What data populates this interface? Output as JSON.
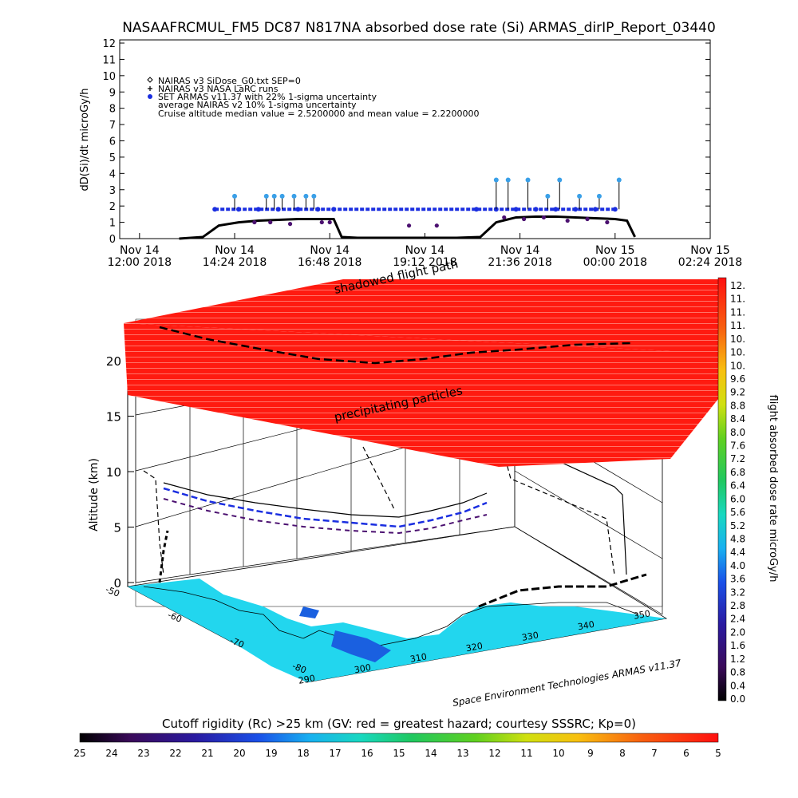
{
  "title": "NASAAFRCMUL_FM5 DC87 N817NA absorbed dose rate (Si) ARMAS_dirIP_Report_03440",
  "top_chart": {
    "ylabel": "dD(Si)/dt microGy/h",
    "y_ticks": [
      "0",
      "1",
      "2",
      "3",
      "4",
      "5",
      "6",
      "7",
      "8",
      "9",
      "10",
      "11",
      "12"
    ],
    "x_ticks": [
      {
        "line1": "Nov 14",
        "line2": "12:00 2018",
        "hours": 12.0
      },
      {
        "line1": "Nov 14",
        "line2": "14:24 2018",
        "hours": 14.4
      },
      {
        "line1": "Nov 14",
        "line2": "16:48 2018",
        "hours": 16.8
      },
      {
        "line1": "Nov 14",
        "line2": "19:12 2018",
        "hours": 19.2
      },
      {
        "line1": "Nov 14",
        "line2": "21:36 2018",
        "hours": 21.6
      },
      {
        "line1": "Nov 15",
        "line2": "00:00 2018",
        "hours": 24.0
      },
      {
        "line1": "Nov 15",
        "line2": "02:24 2018",
        "hours": 26.4
      }
    ],
    "legend": [
      {
        "symbol": "diamond",
        "text": "NAIRAS v3 SiDose_G0.txt SEP=0"
      },
      {
        "symbol": "plus",
        "text": "NAIRAS v3 NASA LaRC runs"
      },
      {
        "symbol": "dot",
        "text": "SET ARMAS v11.37 with 22% 1-sigma uncertainty"
      },
      {
        "symbol": "none",
        "text": "average NAIRAS v2 10% 1-sigma uncertainty"
      },
      {
        "symbol": "none",
        "text": "Cruise altitude median value = 2.5200000 and mean value = 2.2200000"
      }
    ],
    "overlay_label": "shadowed flight path"
  },
  "chart_data": {
    "type": "line",
    "x_unit": "hours since Nov 14 2018 00:00",
    "xlim": [
      11.5,
      26.4
    ],
    "ylim": [
      0,
      12
    ],
    "grid": false,
    "legend_position": "top-left",
    "series": [
      {
        "name": "NAIRAS v3 SiDose_G0.txt SEP=0",
        "color": "#000000",
        "x": [
          13.0,
          13.6,
          14.0,
          14.5,
          15.0,
          15.5,
          16.0,
          16.5,
          16.9,
          17.1,
          17.5,
          18.0,
          18.5,
          19.0,
          19.5,
          20.0,
          20.6,
          21.0,
          21.5,
          22.0,
          22.5,
          23.0,
          23.5,
          24.0,
          24.3,
          24.5
        ],
        "y": [
          0.0,
          0.1,
          0.8,
          1.0,
          1.1,
          1.15,
          1.2,
          1.2,
          1.2,
          0.1,
          0.05,
          0.05,
          0.05,
          0.05,
          0.05,
          0.05,
          0.1,
          1.0,
          1.3,
          1.35,
          1.35,
          1.3,
          1.25,
          1.2,
          1.1,
          0.1
        ]
      },
      {
        "name": "SET ARMAS v11.37 with 22% 1-sigma uncertainty",
        "color": "#1a2ee0",
        "x": [
          13.9,
          14.5,
          15.0,
          15.5,
          16.0,
          16.5,
          16.9,
          20.5,
          21.0,
          21.5,
          22.0,
          22.5,
          23.0,
          23.5,
          24.0
        ],
        "y": [
          1.8,
          1.8,
          1.8,
          1.8,
          1.8,
          1.8,
          1.8,
          1.8,
          1.8,
          1.8,
          1.8,
          1.8,
          1.8,
          1.8,
          1.8
        ]
      },
      {
        "name": "SET ARMAS v11.37 upper points",
        "color": "#3aa0e8",
        "x": [
          14.4,
          15.2,
          15.4,
          15.6,
          15.9,
          16.2,
          16.4,
          21.0,
          21.3,
          21.8,
          22.3,
          22.6,
          23.1,
          23.6,
          24.1
        ],
        "y": [
          2.6,
          2.6,
          2.6,
          2.6,
          2.6,
          2.6,
          2.6,
          3.6,
          3.6,
          3.6,
          2.6,
          3.6,
          2.6,
          2.6,
          3.6
        ]
      }
    ]
  },
  "three_d": {
    "zlabel": "Altitude (km)",
    "z_ticks": [
      "0",
      "5",
      "10",
      "15",
      "20"
    ],
    "x_ticks": [
      "290",
      "300",
      "310",
      "320",
      "330",
      "340",
      "350"
    ],
    "y_ticks": [
      "-50",
      "-60",
      "-70",
      "-80"
    ],
    "precip_label": "precipitating particles",
    "credit": "Space Environment Technologies ARMAS v11.37"
  },
  "right_colorbar": {
    "title": "flight absorbed dose rate microGy/h",
    "labels": [
      "12.",
      "11.",
      "11.",
      "11.",
      "10.",
      "10.",
      "10.",
      "9.6",
      "9.2",
      "8.8",
      "8.4",
      "8.0",
      "7.6",
      "7.2",
      "6.8",
      "6.4",
      "6.0",
      "5.6",
      "5.2",
      "4.8",
      "4.4",
      "4.0",
      "3.6",
      "3.2",
      "2.8",
      "2.4",
      "2.0",
      "1.6",
      "1.2",
      "0.8",
      "0.4",
      "0.0"
    ]
  },
  "bottom_colorbar": {
    "title": "Cutoff rigidity (Rc) >25 km (GV: red = greatest hazard; courtesy SSSRC; Kp=0)",
    "labels": [
      "25",
      "24",
      "23",
      "22",
      "21",
      "20",
      "19",
      "18",
      "17",
      "16",
      "15",
      "14",
      "13",
      "12",
      "11",
      "10",
      "9",
      "8",
      "7",
      "6",
      "5"
    ]
  },
  "colors": {
    "hazard_red": "#ff1a10",
    "ocean_cyan": "#22d6ee",
    "armas_blue": "#1a2ee0",
    "armas_light": "#3aa0e8",
    "armas_purple": "#4b1070"
  }
}
